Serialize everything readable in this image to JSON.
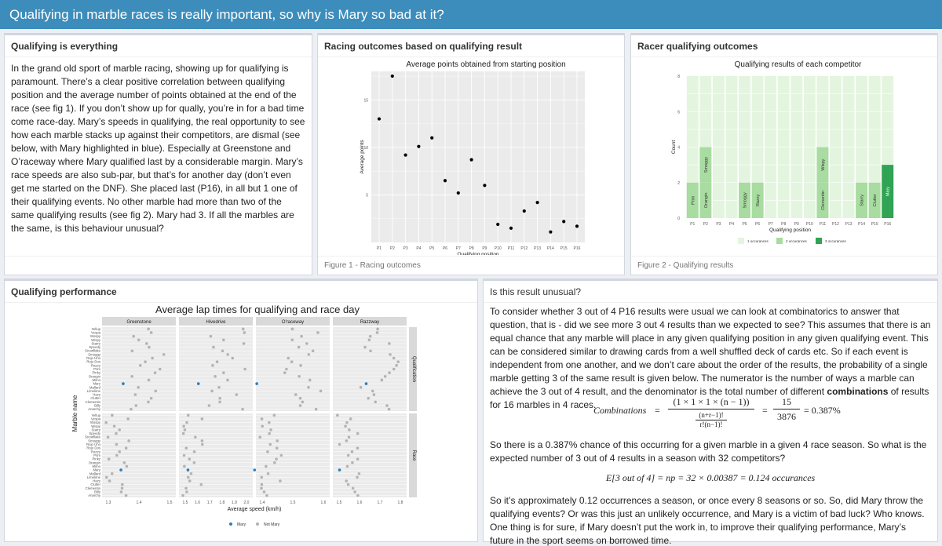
{
  "app_title": "Qualifying in marble races is really important, so why is Mary so bad at it?",
  "boxes": {
    "intro": {
      "title": "Qualifying is everything",
      "text": "In the grand old sport of marble racing, showing up for qualifying is paramount. There’s a clear positive correlation between qualifying position and the average number of points obtained at the end of the race (see fig 1). If you don’t show up for qually, you’re in for a bad time come race-day. Mary’s speeds in qualifying, the real opportunity to see how each marble stacks up against their competitors, are dismal (see below, with Mary highlighted in blue). Especially at Greenstone and O’raceway where Mary qualified last by a considerable margin. Mary’s race speeds are also sub-par, but that’s for another day (don’t even get me started on the DNF). She placed last (P16), in all but 1 one of their qualifying events. No other marble had more than two of the same qualifying results (see fig 2). Mary had 3. If all the marbles are the same, is this behaviour unusual?"
    },
    "outcomes": {
      "title": "Racing outcomes based on qualifying result",
      "footer": "Figure 1 - Racing outcomes"
    },
    "racer": {
      "title": "Racer qualifying outcomes",
      "footer": "Figure 2 - Qualifying results"
    },
    "performance": {
      "title": "Qualifying performance"
    },
    "unusual": {
      "title": "Is this result unusual?",
      "p1_before": "To consider whether 3 out of 4 P16 results were usual we can look at combinatorics to answer that question, that is - did we see more 3 out 4 results than we expected to see? This assumes that there is an equal chance that any marble will place in any given qualifying position in any given qualifying event. This can be considered similar to drawing cards from a well shuffled deck of cards etc. So if each event is independent from one another, and we don’t care about the order of the results, the probability of a single marble getting 3 of the same result is given below. The numerator is the number of ways a marble can achieve the 3 out of 4 result, and the denominator is the total number of different ",
      "p1_bold": "combinations",
      "p1_after": " of results for 16 marbles in 4 races.",
      "f1_label": "Combinations",
      "f1_num": "(1 × 1 × 1 × (n − 1))",
      "f1_den_top": "(n+r−1)!",
      "f1_den_bot": "r!(n−1)!",
      "f1_frac_num": "15",
      "f1_frac_den": "3876",
      "f1_result": "= 0.387%",
      "p2": "So there is a 0.387% chance of this occurring for a given marble in a given 4 race season. So what is the expected number of 3 out of 4 results in a season with 32 competitors?",
      "f2": "E[3 out of 4] = np = 32 × 0.00387 = 0.124 occurances",
      "p3": "So it’s approximately 0.12 occurrences a season, or once every 8 seasons or so. So, did Mary throw the qualifying events? Or was this just an unlikely occurrence, and Mary is a victim of bad luck? Who knows. One thing is for sure, if Mary doesn’t put the work in, to improve their qualifying performance, Mary’s future in the sport seems on borrowed time."
    }
  },
  "chart_data": [
    {
      "type": "scatter",
      "title": "Average points obtained from starting position",
      "xlabel": "Qualifying position",
      "ylabel": "Average points",
      "categories": [
        "P1",
        "P2",
        "P3",
        "P4",
        "P5",
        "P6",
        "P7",
        "P8",
        "P9",
        "P10",
        "P11",
        "P12",
        "P13",
        "P14",
        "P15",
        "P16"
      ],
      "values": [
        13,
        17.5,
        9.2,
        10.1,
        11,
        6.5,
        5.2,
        8.7,
        6,
        1.9,
        1.5,
        3.3,
        4.2,
        1.1,
        2.2,
        1.7
      ],
      "ylim": [
        0,
        18
      ],
      "yticks": [
        5,
        10,
        15
      ],
      "grid": true
    },
    {
      "type": "bar",
      "title": "Qualifying results of each competitor",
      "xlabel": "Qualifying position",
      "ylabel": "Count",
      "categories": [
        "P1",
        "P2",
        "P3",
        "P4",
        "P5",
        "P6",
        "P7",
        "P8",
        "P9",
        "P10",
        "P11",
        "P12",
        "P13",
        "P14",
        "P15",
        "P16"
      ],
      "ylim": [
        0,
        8
      ],
      "yticks": [
        0,
        2,
        4,
        6,
        8
      ],
      "legend": [
        "1 occurances",
        "2 occurances",
        "3 occurances"
      ],
      "legend_colors": [
        "#e4f5df",
        "#a8dca0",
        "#31a354"
      ],
      "highlights": [
        {
          "position": "P1",
          "label": "Prim",
          "count": 2,
          "level": 2
        },
        {
          "position": "P2",
          "label": "Orangin",
          "count": 2,
          "level": 2
        },
        {
          "position": "P2",
          "label": "Smoggy",
          "count": 2,
          "level": 2
        },
        {
          "position": "P5",
          "label": "Smoggy",
          "count": 2,
          "level": 2
        },
        {
          "position": "P6",
          "label": "Razzy",
          "count": 2,
          "level": 2
        },
        {
          "position": "P11",
          "label": "Clementin",
          "count": 2,
          "level": 2
        },
        {
          "position": "P11",
          "label": "Wispy",
          "count": 2,
          "level": 2
        },
        {
          "position": "P14",
          "label": "Starry",
          "count": 2,
          "level": 2
        },
        {
          "position": "P15",
          "label": "Clutter",
          "count": 2,
          "level": 2
        },
        {
          "position": "P16",
          "label": "Mary",
          "count": 3,
          "level": 3
        }
      ]
    },
    {
      "type": "scatter",
      "title": "Average lap times for qualifying and race day",
      "xlabel": "Average speed (km/h)",
      "ylabel": "Marble name",
      "facets": [
        "Greenstone",
        "Hivedrive",
        "O'raceway",
        "Razzway"
      ],
      "rows": [
        "Qualification",
        "Race"
      ],
      "marbles": [
        "Yellup",
        "Vespa",
        "Wospy",
        "Wispy",
        "Starry",
        "Speedy",
        "Snowflake",
        "Smoggy",
        "Rojo Uno",
        "Rojo Dos",
        "Razzy",
        "Prim",
        "Pinky",
        "Orangin",
        "Mimo",
        "Mary",
        "Mallard",
        "Limelime",
        "Hazy",
        "Clutter",
        "Clementin",
        "Billy",
        "Anarchy"
      ],
      "mary_qualification": [
        1.33,
        1.62,
        1.34,
        1.63
      ],
      "mary_race": [
        1.32,
        1.53,
        1.33,
        1.48
      ],
      "facet_ticks": [
        [
          "1.3",
          "1.4",
          "1.5"
        ],
        [
          "1.5",
          "1.6",
          "1.7",
          "1.8",
          "1.9",
          "2.0"
        ],
        [
          "1.4",
          "1.5",
          "1.6"
        ],
        [
          "1.5",
          "1.6",
          "1.7",
          "1.8"
        ]
      ],
      "legend": [
        "Mary",
        "Not Mary"
      ],
      "legend_colors": [
        "#2c7fb8",
        "#b3b3b3"
      ]
    }
  ]
}
